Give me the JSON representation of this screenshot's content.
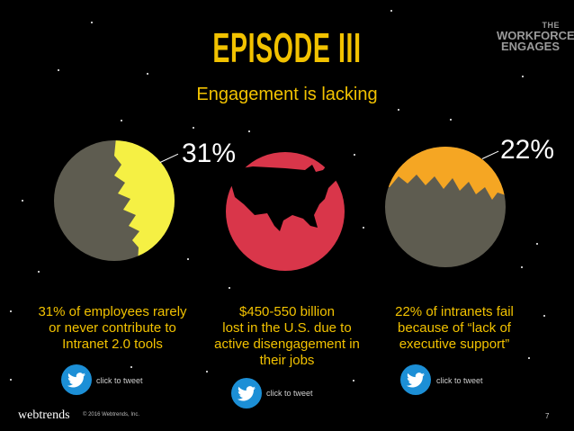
{
  "slide": {
    "title": "EPISODE III",
    "subtitle": "Engagement is lacking",
    "brand_line1": "WORKFORCE",
    "brand_line2": "ENGAGES",
    "brand_prefix": "THE",
    "page_number": "7",
    "footer_logo": "webtrends",
    "footer_copyright": "© 2016 Webtrends, Inc."
  },
  "stats": [
    {
      "percent": "31%",
      "caption_lines": [
        "31% of employees rarely",
        "or never contribute to",
        "Intranet 2.0 tools"
      ],
      "tweet_label": "click to tweet",
      "fill_fraction": 0.31,
      "fill_color": "#f5f044"
    },
    {
      "caption_lines": [
        "$450-550 billion",
        "lost in the U.S. due to",
        "active disengagement in",
        "their jobs"
      ],
      "tweet_label": "click to tweet",
      "fill_color": "#d9364a"
    },
    {
      "percent": "22%",
      "caption_lines": [
        "22% of intranets fail",
        "because of “lack of",
        "executive support”"
      ],
      "tweet_label": "click to tweet",
      "fill_fraction": 0.22,
      "fill_color": "#f5a623"
    }
  ],
  "colors": {
    "accent": "#f2c200",
    "planet": "#5e5c50",
    "twitter": "#1c8fd6"
  },
  "icons": [
    "twitter-bird-icon"
  ]
}
